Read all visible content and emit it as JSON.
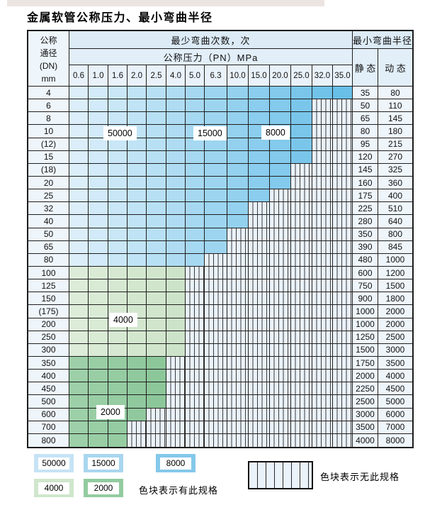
{
  "page": {
    "title": "金属软管公称压力、最小弯曲半径"
  },
  "colors": {
    "blue_light": "#dbeefa",
    "blue_dark": "#68bfe8",
    "green_light_start": "#dcecd8",
    "green_light_end": "#cde3c9",
    "green_dark_start": "#9dd0a8",
    "green_dark_end": "#8cc79a",
    "hatch_bg": "#eaf2fa",
    "grid_line": "#1f1f1f"
  },
  "table": {
    "corner_header_lines": [
      "公称",
      "通径",
      "(DN)",
      "mm"
    ],
    "bend_cycles_header": "最少弯曲次数，次",
    "pressure_header": "公称压力（PN）MPa",
    "radius_header": "最小弯曲半径",
    "static_header": "静 态",
    "dynamic_header": "动 态",
    "pressure_columns": [
      "0.6",
      "1.0",
      "1.6",
      "2.0",
      "2.5",
      "4.0",
      "5.0",
      "6.3",
      "10.0",
      "15.0",
      "20.0",
      "25.0",
      "32.0",
      "35.0"
    ],
    "rows": [
      {
        "dn": "4",
        "colored_cols": 14,
        "zone": "blue",
        "static": "35",
        "dynamic": "80"
      },
      {
        "dn": "6",
        "colored_cols": 12,
        "zone": "blue",
        "static": "50",
        "dynamic": "110"
      },
      {
        "dn": "8",
        "colored_cols": 12,
        "zone": "blue",
        "static": "65",
        "dynamic": "145"
      },
      {
        "dn": "10",
        "colored_cols": 12,
        "zone": "blue",
        "static": "80",
        "dynamic": "180"
      },
      {
        "dn": "(12)",
        "colored_cols": 12,
        "zone": "blue",
        "static": "95",
        "dynamic": "215"
      },
      {
        "dn": "15",
        "colored_cols": 12,
        "zone": "blue",
        "static": "120",
        "dynamic": "270"
      },
      {
        "dn": "(18)",
        "colored_cols": 11,
        "zone": "blue",
        "static": "145",
        "dynamic": "325"
      },
      {
        "dn": "20",
        "colored_cols": 11,
        "zone": "blue",
        "static": "160",
        "dynamic": "360"
      },
      {
        "dn": "25",
        "colored_cols": 10,
        "zone": "blue",
        "static": "175",
        "dynamic": "400"
      },
      {
        "dn": "32",
        "colored_cols": 9,
        "zone": "blue",
        "static": "225",
        "dynamic": "510"
      },
      {
        "dn": "40",
        "colored_cols": 9,
        "zone": "blue",
        "static": "280",
        "dynamic": "640"
      },
      {
        "dn": "50",
        "colored_cols": 8,
        "zone": "blue",
        "static": "350",
        "dynamic": "800"
      },
      {
        "dn": "65",
        "colored_cols": 8,
        "zone": "blue",
        "static": "390",
        "dynamic": "845"
      },
      {
        "dn": "80",
        "colored_cols": 7,
        "zone": "blue",
        "static": "480",
        "dynamic": "1000"
      },
      {
        "dn": "100",
        "colored_cols": 6,
        "zone": "green-light",
        "static": "600",
        "dynamic": "1200"
      },
      {
        "dn": "125",
        "colored_cols": 6,
        "zone": "green-light",
        "static": "750",
        "dynamic": "1500"
      },
      {
        "dn": "150",
        "colored_cols": 6,
        "zone": "green-light",
        "static": "900",
        "dynamic": "1800"
      },
      {
        "dn": "(175)",
        "colored_cols": 6,
        "zone": "green-light",
        "static": "1000",
        "dynamic": "2000"
      },
      {
        "dn": "200",
        "colored_cols": 6,
        "zone": "green-light",
        "static": "1000",
        "dynamic": "2000"
      },
      {
        "dn": "250",
        "colored_cols": 6,
        "zone": "green-light",
        "static": "1250",
        "dynamic": "2500"
      },
      {
        "dn": "300",
        "colored_cols": 6,
        "zone": "green-light",
        "static": "1500",
        "dynamic": "3000"
      },
      {
        "dn": "350",
        "colored_cols": 5,
        "zone": "green-dark",
        "static": "1750",
        "dynamic": "3500"
      },
      {
        "dn": "400",
        "colored_cols": 5,
        "zone": "green-dark",
        "static": "2000",
        "dynamic": "4000"
      },
      {
        "dn": "450",
        "colored_cols": 5,
        "zone": "green-dark",
        "static": "2250",
        "dynamic": "4500"
      },
      {
        "dn": "500",
        "colored_cols": 5,
        "zone": "green-dark",
        "static": "2500",
        "dynamic": "5000"
      },
      {
        "dn": "600",
        "colored_cols": 4,
        "zone": "green-dark",
        "static": "3000",
        "dynamic": "6000"
      },
      {
        "dn": "700",
        "colored_cols": 3,
        "zone": "green-dark",
        "static": "3500",
        "dynamic": "7000"
      },
      {
        "dn": "800",
        "colored_cols": 3,
        "zone": "green-dark",
        "static": "4000",
        "dynamic": "8000"
      }
    ],
    "zone_labels": [
      {
        "text": "50000"
      },
      {
        "text": "15000"
      },
      {
        "text": "8000"
      },
      {
        "text": "4000"
      },
      {
        "text": "2000"
      }
    ]
  },
  "legend": {
    "swatches": [
      {
        "label": "50000",
        "color": "#c6e3f5"
      },
      {
        "label": "15000",
        "color": "#a9d6ef"
      },
      {
        "label": "8000",
        "color": "#85c8ea"
      },
      {
        "label": "4000",
        "color": "#cfe6cc"
      },
      {
        "label": "2000",
        "color": "#93cba0"
      }
    ],
    "has_spec_text": "色块表示有此规格",
    "no_spec_text": "色块表示无此规格"
  }
}
